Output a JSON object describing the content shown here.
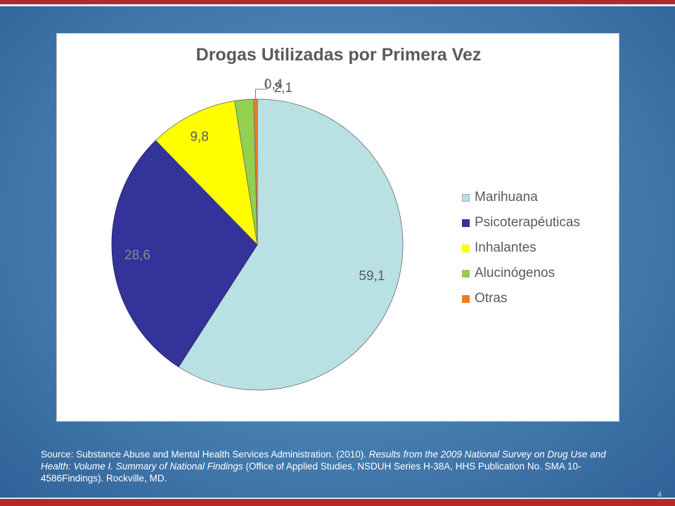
{
  "chart_data": {
    "type": "pie",
    "title": "Drogas Utilizadas por Primera Vez",
    "categories": [
      "Marihuana",
      "Psicoterapéuticas",
      "Inhalantes",
      "Alucinógenos",
      "Otras"
    ],
    "values": [
      59.1,
      28.6,
      9.8,
      2.1,
      0.4
    ],
    "value_labels": [
      "59,1",
      "28,6",
      "9,8",
      "2,1",
      "0,4"
    ],
    "colors": [
      "#b9e0e3",
      "#333399",
      "#ffff00",
      "#92d050",
      "#f07d1c"
    ],
    "label_colors": [
      "#5a5a5a",
      "#8a8a8a",
      "#5a5a5a",
      "#5a5a5a",
      "#5a5a5a"
    ],
    "legend_position": "right"
  },
  "source": {
    "prefix": "Source: Substance Abuse and Mental Health Services Administration. (2010). ",
    "title": "Results from the 2009 National Survey on Drug Use and Health: Volume I. Summary of National Findings",
    "suffix": " (Office of Applied Studies, NSDUH Series H-38A, HHS Publication No. SMA 10-4586Findings). Rockville, MD."
  },
  "page_number": "4"
}
